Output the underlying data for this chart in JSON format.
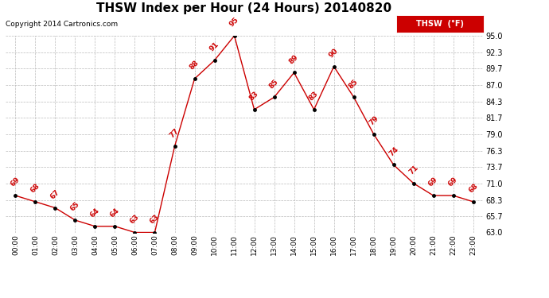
{
  "title": "THSW Index per Hour (24 Hours) 20140820",
  "copyright": "Copyright 2014 Cartronics.com",
  "hours": [
    "00:00",
    "01:00",
    "02:00",
    "03:00",
    "04:00",
    "05:00",
    "06:00",
    "07:00",
    "08:00",
    "09:00",
    "10:00",
    "11:00",
    "12:00",
    "13:00",
    "14:00",
    "15:00",
    "16:00",
    "17:00",
    "18:00",
    "19:00",
    "20:00",
    "21:00",
    "22:00",
    "23:00"
  ],
  "values": [
    69,
    68,
    67,
    65,
    64,
    64,
    63,
    63,
    77,
    88,
    91,
    95,
    83,
    85,
    89,
    83,
    90,
    85,
    79,
    74,
    71,
    69,
    69,
    68
  ],
  "ylim_min": 63.0,
  "ylim_max": 95.0,
  "yticks": [
    63.0,
    65.7,
    68.3,
    71.0,
    73.7,
    76.3,
    79.0,
    81.7,
    84.3,
    87.0,
    89.7,
    92.3,
    95.0
  ],
  "line_color": "#cc0000",
  "marker_color": "#000000",
  "label_color": "#cc0000",
  "bg_color": "#ffffff",
  "grid_color": "#bbbbbb",
  "title_fontsize": 11,
  "legend_label": "THSW  (°F)",
  "legend_bg": "#cc0000",
  "legend_text_color": "#ffffff"
}
